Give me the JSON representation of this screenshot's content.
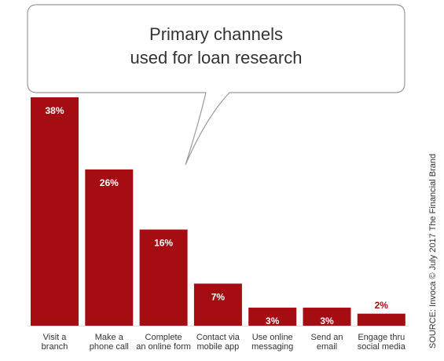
{
  "chart_data": {
    "type": "bar",
    "title": [
      "Primary channels",
      "used for loan research"
    ],
    "categories": [
      [
        "Visit a",
        "branch"
      ],
      [
        "Make a",
        "phone call"
      ],
      [
        "Complete",
        "an online form"
      ],
      [
        "Contact via",
        "mobile app"
      ],
      [
        "Use online",
        "messaging"
      ],
      [
        "Send an",
        "email"
      ],
      [
        "Engage thru",
        "social media"
      ]
    ],
    "values": [
      38,
      26,
      16,
      7,
      3,
      3,
      2
    ],
    "value_labels": [
      "38%",
      "26%",
      "16%",
      "7%",
      "3%",
      "3%",
      "2%"
    ],
    "color": "#a50d12",
    "source": "SOURCE: Invoca © July 2017 The Financial Brand"
  }
}
